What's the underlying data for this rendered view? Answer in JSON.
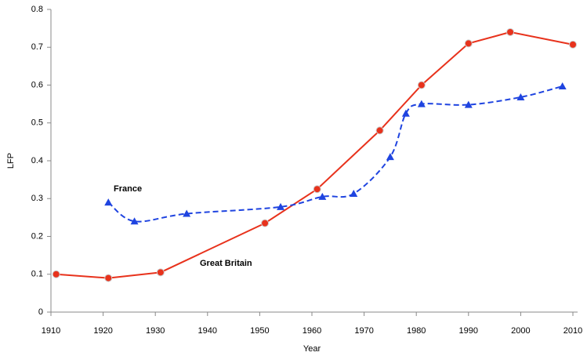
{
  "chart_data": {
    "type": "line",
    "x_label": "Year",
    "y_label": "LFP",
    "xlim": [
      1910,
      2010
    ],
    "xticks": [
      1910,
      1920,
      1930,
      1940,
      1950,
      1960,
      1970,
      1980,
      1990,
      2000,
      2010
    ],
    "ylim": [
      0,
      0.8
    ],
    "yticks": [
      0,
      0.1,
      0.2,
      0.3,
      0.4,
      0.5,
      0.6,
      0.7,
      0.8
    ],
    "series": [
      {
        "name": "Great Britain",
        "color": "#e8321c",
        "style": "solid",
        "marker": "circle",
        "x": [
          1911,
          1921,
          1931,
          1951,
          1961,
          1973,
          1981,
          1990,
          1998,
          2010
        ],
        "values": [
          0.1,
          0.09,
          0.105,
          0.235,
          0.325,
          0.48,
          0.6,
          0.71,
          0.74,
          0.707
        ]
      },
      {
        "name": "France",
        "color": "#1f44e0",
        "style": "dashed",
        "marker": "triangle",
        "x": [
          1921,
          1926,
          1936,
          1954,
          1962,
          1968,
          1975,
          1978,
          1981,
          1990,
          2000,
          2008
        ],
        "values": [
          0.29,
          0.24,
          0.26,
          0.278,
          0.305,
          0.313,
          0.41,
          0.525,
          0.55,
          0.548,
          0.568,
          0.597
        ]
      }
    ]
  }
}
